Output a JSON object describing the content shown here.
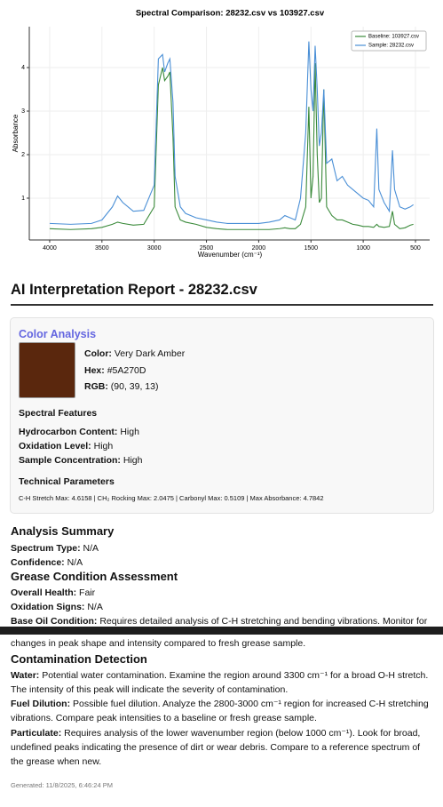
{
  "chart_data": {
    "type": "line",
    "title": "Spectral Comparison: 28232.csv vs 103927.csv",
    "xlabel": "Wavenumber (cm⁻¹)",
    "ylabel": "Absorbance",
    "x": [
      4000,
      3800,
      3600,
      3500,
      3400,
      3350,
      3300,
      3200,
      3100,
      3000,
      2960,
      2920,
      2900,
      2870,
      2850,
      2820,
      2800,
      2750,
      2700,
      2600,
      2500,
      2400,
      2300,
      2200,
      2100,
      2000,
      1900,
      1800,
      1750,
      1700,
      1650,
      1600,
      1550,
      1520,
      1500,
      1480,
      1460,
      1440,
      1420,
      1400,
      1377,
      1350,
      1300,
      1250,
      1200,
      1150,
      1100,
      1050,
      1000,
      950,
      900,
      870,
      850,
      800,
      750,
      720,
      700,
      650,
      600,
      550,
      520
    ],
    "series": [
      {
        "name": "Baseline: 103927.csv",
        "color": "#3a8a3a",
        "values": [
          0.3,
          0.28,
          0.3,
          0.33,
          0.4,
          0.45,
          0.42,
          0.38,
          0.4,
          0.8,
          3.6,
          4.0,
          3.7,
          3.8,
          3.9,
          2.4,
          0.8,
          0.5,
          0.45,
          0.4,
          0.33,
          0.3,
          0.28,
          0.28,
          0.28,
          0.28,
          0.28,
          0.3,
          0.32,
          0.3,
          0.3,
          0.4,
          0.8,
          3.1,
          1.0,
          1.5,
          4.1,
          2.0,
          0.9,
          1.0,
          3.5,
          0.8,
          0.6,
          0.5,
          0.5,
          0.45,
          0.4,
          0.38,
          0.35,
          0.35,
          0.33,
          0.4,
          0.35,
          0.33,
          0.35,
          0.7,
          0.4,
          0.3,
          0.32,
          0.38,
          0.4
        ]
      },
      {
        "name": "Sample: 28232.csv",
        "color": "#4a8fd6",
        "values": [
          0.42,
          0.4,
          0.42,
          0.5,
          0.8,
          1.05,
          0.9,
          0.7,
          0.72,
          1.3,
          4.2,
          4.3,
          3.9,
          4.1,
          4.2,
          3.2,
          1.5,
          0.8,
          0.65,
          0.55,
          0.5,
          0.45,
          0.42,
          0.42,
          0.42,
          0.42,
          0.45,
          0.5,
          0.6,
          0.55,
          0.5,
          1.0,
          2.5,
          4.6,
          3.5,
          3.0,
          4.5,
          3.5,
          2.2,
          2.5,
          3.5,
          1.8,
          1.9,
          1.4,
          1.5,
          1.3,
          1.2,
          1.1,
          1.0,
          0.95,
          0.8,
          2.6,
          1.2,
          0.9,
          0.7,
          2.1,
          1.2,
          0.8,
          0.75,
          0.8,
          0.85
        ]
      }
    ],
    "xlim": [
      4195,
      364
    ],
    "xticks": [
      4000,
      3500,
      3000,
      2500,
      2000,
      1500,
      1000,
      500
    ],
    "ylim": [
      0.04,
      4.94
    ],
    "yticks": [
      1,
      2,
      3,
      4
    ],
    "grid": true,
    "legend": "upper right"
  },
  "report": {
    "title": "AI Interpretation Report - 28232.csv",
    "color_analysis": {
      "heading": "Color Analysis",
      "items": [
        {
          "label": "Color:",
          "value": "Very Dark Amber"
        },
        {
          "label": "Hex:",
          "value": "#5A270D"
        },
        {
          "label": "RGB:",
          "value": "(90, 39, 13)"
        }
      ]
    },
    "spectral_features": {
      "heading": "Spectral Features",
      "items": [
        {
          "label": "Hydrocarbon Content:",
          "value": "High"
        },
        {
          "label": "Oxidation Level:",
          "value": "High"
        },
        {
          "label": "Sample Concentration:",
          "value": "High"
        }
      ]
    },
    "technical": {
      "heading": "Technical Parameters",
      "text": "C-H Stretch Max: 4.6158 | CH₂ Rocking Max: 2.0475 | Carbonyl Max: 0.5109 | Max Absorbance: 4.7842"
    },
    "analysis_summary": {
      "heading": "Analysis Summary",
      "items": [
        {
          "label": "Spectrum Type:",
          "value": "N/A"
        },
        {
          "label": "Confidence:",
          "value": "N/A"
        }
      ]
    },
    "grease_condition": {
      "heading": "Grease Condition Assessment",
      "items": [
        {
          "label": "Overall Health:",
          "value": "Fair"
        },
        {
          "label": "Oxidation Signs:",
          "value": "N/A"
        },
        {
          "label": "Base Oil Condition:",
          "lines": [
            "Requires detailed analysis of C-H stretching and bending vibrations. Monitor for",
            "changes in peak shape and intensity compared to fresh grease sample."
          ]
        }
      ]
    },
    "contamination": {
      "heading": "Contamination Detection",
      "items": [
        {
          "label": "Water:",
          "value": "Potential water contamination. Examine the region around 3300 cm⁻¹ for a broad O-H stretch. The intensity of this peak will indicate the severity of contamination."
        },
        {
          "label": "Fuel Dilution:",
          "value": "Possible fuel dilution. Analyze the 2800-3000 cm⁻¹ region for increased C-H stretching vibrations. Compare peak intensities to a baseline or fresh grease sample."
        },
        {
          "label": "Particulate:",
          "value": "Requires analysis of the lower wavenumber region (below 1000 cm⁻¹). Look for broad, undefined peaks indicating the presence of dirt or wear debris. Compare to a reference spectrum of the grease when new."
        }
      ]
    },
    "generated": "Generated: 11/8/2025, 6:46:24 PM"
  }
}
